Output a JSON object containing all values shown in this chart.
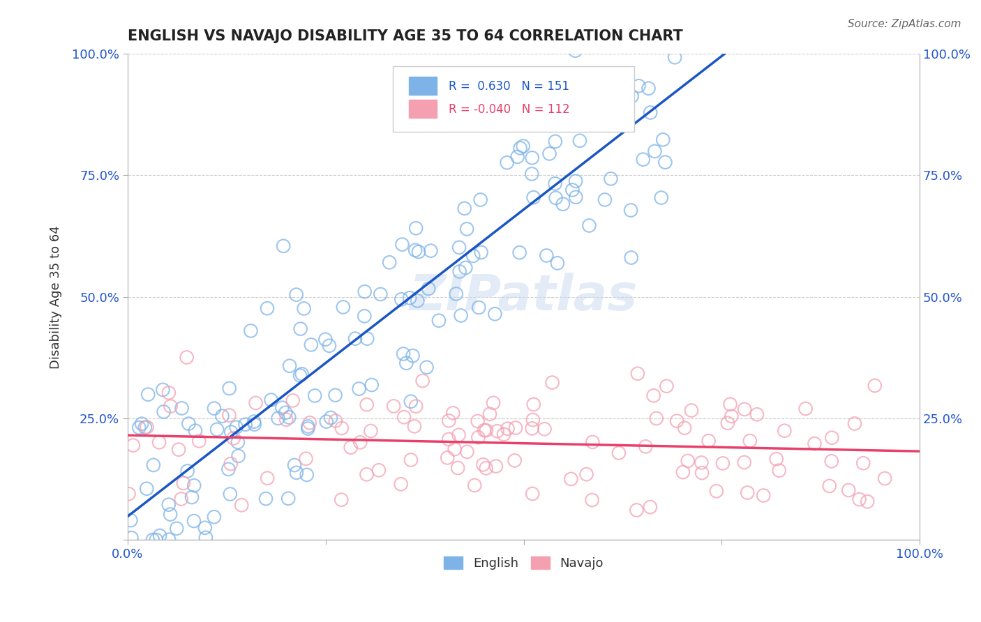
{
  "title": "ENGLISH VS NAVAJO DISABILITY AGE 35 TO 64 CORRELATION CHART",
  "source": "Source: ZipAtlas.com",
  "xlabel": "",
  "ylabel": "Disability Age 35 to 64",
  "xlim": [
    0.0,
    1.0
  ],
  "ylim": [
    0.0,
    1.0
  ],
  "xtick_labels": [
    "0.0%",
    "100.0%"
  ],
  "ytick_labels": [
    "0.0%",
    "25.0%",
    "50.0%",
    "75.0%",
    "100.0%"
  ],
  "english_R": 0.63,
  "english_N": 151,
  "navajo_R": -0.04,
  "navajo_N": 112,
  "english_color": "#7eb3e8",
  "navajo_color": "#f4a0b0",
  "english_line_color": "#1a56c4",
  "navajo_line_color": "#e8406a",
  "legend_R_english": "R =  0.630",
  "legend_N_english": "N = 151",
  "legend_R_navajo": "R = -0.040",
  "legend_N_navajo": "N = 112",
  "watermark": "ZIPatlas",
  "background_color": "#ffffff",
  "grid_color": "#cccccc",
  "english_seed": 42,
  "navajo_seed": 7
}
